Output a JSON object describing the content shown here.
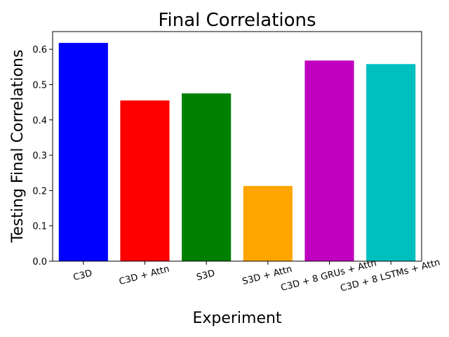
{
  "chart_data": {
    "type": "bar",
    "title": "Final Correlations",
    "xlabel": "Experiment",
    "ylabel": "Testing Final Correlations",
    "categories": [
      "C3D",
      "C3D + Attn",
      "S3D",
      "S3D + Attn",
      "C3D + 8 GRUs + Attn",
      "C3D + 8 LSTMs + Attn"
    ],
    "values": [
      0.618,
      0.455,
      0.475,
      0.213,
      0.568,
      0.558
    ],
    "colors": [
      "#0000ff",
      "#ff0000",
      "#008000",
      "#ffa500",
      "#bf00bf",
      "#00bfbf"
    ],
    "ylim": [
      0,
      0.65
    ],
    "yticks": [
      "0.0",
      "0.1",
      "0.2",
      "0.3",
      "0.4",
      "0.5",
      "0.6"
    ],
    "grid": false,
    "legend": "none"
  }
}
